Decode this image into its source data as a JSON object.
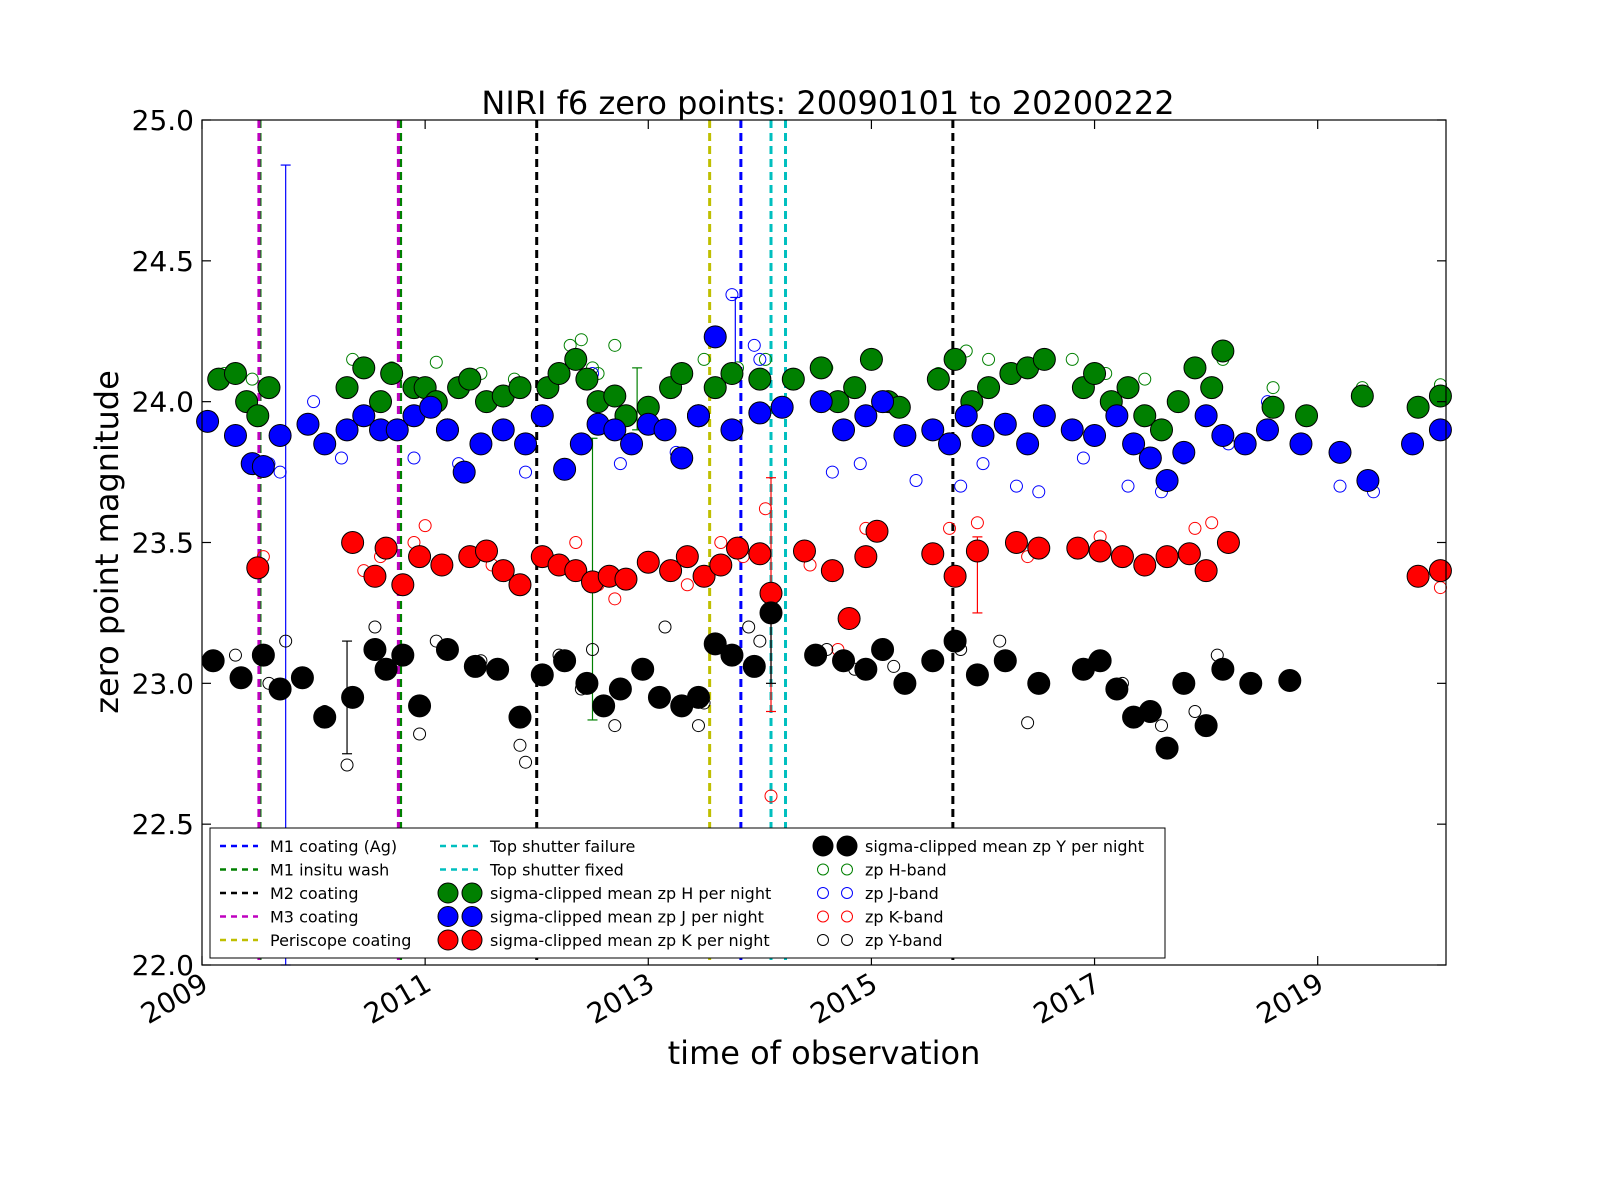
{
  "chart_data": {
    "type": "scatter",
    "title": "NIRI f6 zero points: 20090101 to 20200222",
    "xlabel": "time of observation",
    "ylabel": "zero point magnitude",
    "x_type": "date (decimal year)",
    "xlim": [
      2009.0,
      2020.15
    ],
    "ylim": [
      22.0,
      25.0
    ],
    "grid": false,
    "legend_placement": "lower center",
    "xticks": [
      2009,
      2011,
      2013,
      2015,
      2017,
      2019
    ],
    "xtick_labels": [
      "2009",
      "2011",
      "2013",
      "2015",
      "2017",
      "2019"
    ],
    "yticks": [
      22.0,
      22.5,
      23.0,
      23.5,
      24.0,
      24.5,
      25.0
    ],
    "ytick_labels": [
      "22.0",
      "22.5",
      "23.0",
      "23.5",
      "24.0",
      "24.5",
      "25.0"
    ],
    "events": [
      {
        "name": "M1 coating (Ag)",
        "color": "#0000ff",
        "x": [
          2013.83
        ]
      },
      {
        "name": "M1 insitu wash",
        "color": "#008000",
        "x": [
          2009.52,
          2010.78
        ]
      },
      {
        "name": "M2 coating",
        "color": "#000000",
        "x": [
          2012.0,
          2015.73
        ]
      },
      {
        "name": "M3 coating",
        "color": "#bf00bf",
        "x": [
          2009.51,
          2010.76
        ]
      },
      {
        "name": "Periscope coating",
        "color": "#bfbf00",
        "x": [
          2013.55
        ]
      },
      {
        "name": "Top shutter failure",
        "color": "#00bfbf",
        "x": [
          2014.1
        ]
      },
      {
        "name": "Top shutter fixed",
        "color": "#00bfbf",
        "x": [
          2014.23
        ]
      }
    ],
    "series": [
      {
        "name": "sigma-clipped mean zp H per night",
        "color": "#008000",
        "marker": "filled-large",
        "x": [
          2009.15,
          2009.3,
          2009.4,
          2009.5,
          2009.6,
          2010.3,
          2010.45,
          2010.6,
          2010.7,
          2010.9,
          2011.0,
          2011.1,
          2011.2,
          2011.3,
          2011.4,
          2011.55,
          2011.7,
          2011.85,
          2012.1,
          2012.2,
          2012.35,
          2012.45,
          2012.55,
          2012.7,
          2012.8,
          2013.0,
          2013.2,
          2013.3,
          2013.45,
          2013.6,
          2013.75,
          2014.0,
          2014.3,
          2014.55,
          2014.7,
          2014.85,
          2015.0,
          2015.15,
          2015.25,
          2015.6,
          2015.75,
          2015.9,
          2016.05,
          2016.25,
          2016.4,
          2016.55,
          2016.9,
          2017.0,
          2017.15,
          2017.3,
          2017.45,
          2017.6,
          2017.75,
          2017.9,
          2018.05,
          2018.15,
          2018.6,
          2018.9,
          2019.4,
          2019.9,
          2020.1
        ],
        "y": [
          24.08,
          24.1,
          24.0,
          23.95,
          24.05,
          24.05,
          24.12,
          24.0,
          24.1,
          24.05,
          24.05,
          24.0,
          23.9,
          24.05,
          24.08,
          24.0,
          24.02,
          24.05,
          24.05,
          24.1,
          24.15,
          24.08,
          24.0,
          24.02,
          23.95,
          23.98,
          24.05,
          24.1,
          23.95,
          24.05,
          24.1,
          24.08,
          24.08,
          24.12,
          24.0,
          24.05,
          24.15,
          24.0,
          23.98,
          24.08,
          24.15,
          24.0,
          24.05,
          24.1,
          24.12,
          24.15,
          24.05,
          24.1,
          24.0,
          24.05,
          23.95,
          23.9,
          24.0,
          24.12,
          24.05,
          24.18,
          23.98,
          23.95,
          24.02,
          23.98,
          24.02
        ]
      },
      {
        "name": "sigma-clipped mean zp J per night",
        "color": "#0000ff",
        "marker": "filled-large",
        "x": [
          2009.05,
          2009.3,
          2009.45,
          2009.55,
          2009.7,
          2009.95,
          2010.1,
          2010.3,
          2010.45,
          2010.6,
          2010.75,
          2010.9,
          2011.05,
          2011.2,
          2011.35,
          2011.5,
          2011.7,
          2011.9,
          2012.05,
          2012.25,
          2012.4,
          2012.55,
          2012.7,
          2012.85,
          2013.0,
          2013.15,
          2013.3,
          2013.45,
          2013.6,
          2013.75,
          2014.0,
          2014.2,
          2014.55,
          2014.75,
          2014.95,
          2015.1,
          2015.3,
          2015.55,
          2015.7,
          2015.85,
          2016.0,
          2016.2,
          2016.4,
          2016.55,
          2016.8,
          2017.0,
          2017.2,
          2017.35,
          2017.5,
          2017.65,
          2017.8,
          2018.0,
          2018.15,
          2018.35,
          2018.55,
          2018.85,
          2019.2,
          2019.45,
          2019.85,
          2020.1
        ],
        "y": [
          23.93,
          23.88,
          23.78,
          23.77,
          23.88,
          23.92,
          23.85,
          23.9,
          23.95,
          23.9,
          23.9,
          23.95,
          23.98,
          23.9,
          23.75,
          23.85,
          23.9,
          23.85,
          23.95,
          23.76,
          23.85,
          23.92,
          23.9,
          23.85,
          23.92,
          23.9,
          23.8,
          23.95,
          24.23,
          23.9,
          23.96,
          23.98,
          24.0,
          23.9,
          23.95,
          24.0,
          23.88,
          23.9,
          23.85,
          23.95,
          23.88,
          23.92,
          23.85,
          23.95,
          23.9,
          23.88,
          23.95,
          23.85,
          23.8,
          23.72,
          23.82,
          23.95,
          23.88,
          23.85,
          23.9,
          23.85,
          23.82,
          23.72,
          23.85,
          23.9
        ]
      },
      {
        "name": "sigma-clipped mean zp K per night",
        "color": "#ff0000",
        "marker": "filled-large",
        "x": [
          2009.5,
          2010.35,
          2010.55,
          2010.65,
          2010.8,
          2010.95,
          2011.15,
          2011.4,
          2011.55,
          2011.7,
          2011.85,
          2012.05,
          2012.2,
          2012.35,
          2012.5,
          2012.65,
          2012.8,
          2013.0,
          2013.2,
          2013.35,
          2013.5,
          2013.65,
          2013.8,
          2014.0,
          2014.1,
          2014.4,
          2014.65,
          2014.8,
          2014.95,
          2015.05,
          2015.55,
          2015.75,
          2015.95,
          2016.3,
          2016.5,
          2016.85,
          2017.05,
          2017.25,
          2017.45,
          2017.65,
          2017.85,
          2018.0,
          2018.2,
          2019.9,
          2020.1
        ],
        "y": [
          23.41,
          23.5,
          23.38,
          23.48,
          23.35,
          23.45,
          23.42,
          23.45,
          23.47,
          23.4,
          23.35,
          23.45,
          23.42,
          23.4,
          23.36,
          23.38,
          23.37,
          23.43,
          23.4,
          23.45,
          23.38,
          23.42,
          23.48,
          23.46,
          23.32,
          23.47,
          23.4,
          23.23,
          23.45,
          23.54,
          23.46,
          23.38,
          23.47,
          23.5,
          23.48,
          23.48,
          23.47,
          23.45,
          23.42,
          23.45,
          23.46,
          23.4,
          23.5,
          23.38,
          23.4
        ]
      },
      {
        "name": "sigma-clipped mean zp Y per night",
        "color": "#000000",
        "marker": "filled-large",
        "x": [
          2009.1,
          2009.35,
          2009.55,
          2009.7,
          2009.9,
          2010.1,
          2010.35,
          2010.55,
          2010.65,
          2010.8,
          2010.95,
          2011.2,
          2011.45,
          2011.65,
          2011.85,
          2012.05,
          2012.25,
          2012.45,
          2012.6,
          2012.75,
          2012.95,
          2013.1,
          2013.3,
          2013.45,
          2013.6,
          2013.75,
          2013.95,
          2014.1,
          2014.5,
          2014.75,
          2014.95,
          2015.1,
          2015.3,
          2015.55,
          2015.75,
          2015.95,
          2016.2,
          2016.5,
          2016.9,
          2017.05,
          2017.2,
          2017.35,
          2017.5,
          2017.65,
          2017.8,
          2018.0,
          2018.15,
          2018.4,
          2018.75
        ],
        "y": [
          23.08,
          23.02,
          23.1,
          22.98,
          23.02,
          22.88,
          22.95,
          23.12,
          23.05,
          23.1,
          22.92,
          23.12,
          23.06,
          23.05,
          22.88,
          23.03,
          23.08,
          23.0,
          22.92,
          22.98,
          23.05,
          22.95,
          22.92,
          22.95,
          23.14,
          23.1,
          23.06,
          23.25,
          23.1,
          23.08,
          23.05,
          23.12,
          23.0,
          23.08,
          23.15,
          23.03,
          23.08,
          23.0,
          23.05,
          23.08,
          22.98,
          22.88,
          22.9,
          22.77,
          23.0,
          22.85,
          23.05,
          23.0,
          23.01
        ]
      },
      {
        "name": "zp H-band",
        "color": "#008000",
        "marker": "open-small",
        "x": [
          2009.2,
          2009.45,
          2010.35,
          2010.7,
          2011.1,
          2011.5,
          2011.8,
          2012.3,
          2012.4,
          2012.5,
          2012.55,
          2012.7,
          2013.3,
          2013.5,
          2013.8,
          2014.05,
          2014.6,
          2015.0,
          2015.6,
          2015.85,
          2016.05,
          2016.35,
          2016.8,
          2017.1,
          2017.45,
          2017.9,
          2018.15,
          2018.6,
          2019.4,
          2020.1
        ],
        "y": [
          24.1,
          24.08,
          24.15,
          24.12,
          24.14,
          24.1,
          24.08,
          24.2,
          24.22,
          24.12,
          24.1,
          24.2,
          24.1,
          24.15,
          24.12,
          24.15,
          24.12,
          24.15,
          24.1,
          24.18,
          24.15,
          24.12,
          24.15,
          24.1,
          24.08,
          24.12,
          24.15,
          24.05,
          24.05,
          24.06
        ]
      },
      {
        "name": "zp J-band",
        "color": "#0000ff",
        "marker": "open-small",
        "x": [
          2009.6,
          2009.7,
          2010.0,
          2010.25,
          2010.9,
          2011.3,
          2011.9,
          2012.5,
          2012.75,
          2013.25,
          2013.75,
          2013.95,
          2014.0,
          2014.65,
          2014.9,
          2015.4,
          2015.8,
          2016.0,
          2016.3,
          2016.5,
          2016.9,
          2017.3,
          2017.6,
          2017.8,
          2018.2,
          2018.55,
          2019.2,
          2019.5
        ],
        "y": [
          23.78,
          23.75,
          24.0,
          23.8,
          23.8,
          23.78,
          23.75,
          24.1,
          23.78,
          23.82,
          24.38,
          24.2,
          24.15,
          23.75,
          23.78,
          23.72,
          23.7,
          23.78,
          23.7,
          23.68,
          23.8,
          23.7,
          23.68,
          23.8,
          23.85,
          24.0,
          23.7,
          23.68
        ]
      },
      {
        "name": "zp K-band",
        "color": "#ff0000",
        "marker": "open-small",
        "x": [
          2009.55,
          2010.45,
          2010.6,
          2010.9,
          2011.0,
          2011.6,
          2012.35,
          2012.55,
          2012.7,
          2013.35,
          2013.65,
          2013.85,
          2014.05,
          2014.1,
          2014.45,
          2014.7,
          2014.95,
          2015.7,
          2015.95,
          2016.4,
          2017.05,
          2017.9,
          2018.05,
          2020.1
        ],
        "y": [
          23.45,
          23.4,
          23.45,
          23.5,
          23.56,
          23.42,
          23.5,
          23.35,
          23.3,
          23.35,
          23.5,
          23.45,
          23.62,
          22.6,
          23.42,
          23.12,
          23.55,
          23.55,
          23.57,
          23.45,
          23.52,
          23.55,
          23.57,
          23.34
        ]
      },
      {
        "name": "zp Y-band",
        "color": "#000000",
        "marker": "open-small",
        "x": [
          2009.3,
          2009.6,
          2009.75,
          2010.1,
          2010.3,
          2010.55,
          2010.95,
          2011.1,
          2011.5,
          2011.85,
          2011.9,
          2012.2,
          2012.4,
          2012.5,
          2012.7,
          2013.15,
          2013.45,
          2013.5,
          2013.9,
          2014.0,
          2014.6,
          2014.85,
          2015.2,
          2015.8,
          2016.15,
          2016.4,
          2017.0,
          2017.25,
          2017.6,
          2017.9,
          2018.1
        ],
        "y": [
          23.1,
          23.0,
          23.15,
          22.9,
          22.71,
          23.2,
          22.82,
          23.15,
          23.08,
          22.78,
          22.72,
          23.1,
          22.98,
          23.12,
          22.85,
          23.2,
          22.85,
          22.93,
          23.2,
          23.15,
          23.12,
          23.05,
          23.06,
          23.12,
          23.15,
          22.86,
          23.08,
          23.0,
          22.85,
          22.9,
          23.1
        ]
      }
    ],
    "error_bars": [
      {
        "series": "zp J-band",
        "color": "#0000ff",
        "x": 2009.75,
        "y": 23.5,
        "low": 22.0,
        "high": 24.84
      },
      {
        "series": "zp J-band",
        "color": "#0000ff",
        "x": 2013.78,
        "y": 24.23,
        "low": 24.1,
        "high": 24.37
      },
      {
        "series": "zp H-band",
        "color": "#008000",
        "x": 2012.5,
        "y": 23.37,
        "low": 22.87,
        "high": 23.87
      },
      {
        "series": "zp H-band",
        "color": "#008000",
        "x": 2012.9,
        "y": 24.0,
        "low": 23.9,
        "high": 24.12
      },
      {
        "series": "zp K-band",
        "color": "#ff0000",
        "x": 2014.1,
        "y": 23.32,
        "low": 22.9,
        "high": 23.73
      },
      {
        "series": "zp K-band",
        "color": "#ff0000",
        "x": 2015.95,
        "y": 23.38,
        "low": 23.25,
        "high": 23.52
      },
      {
        "series": "zp Y-band",
        "color": "#000000",
        "x": 2010.3,
        "y": 22.98,
        "low": 22.75,
        "high": 23.15
      },
      {
        "series": "zp Y-band",
        "color": "#000000",
        "x": 2014.1,
        "y": 23.2,
        "low": 23.0,
        "high": 23.3
      }
    ]
  },
  "legend": {
    "columns": [
      [
        {
          "label": "M1 coating (Ag)",
          "kind": "dash",
          "color": "#0000ff"
        },
        {
          "label": "M1 insitu wash",
          "kind": "dash",
          "color": "#008000"
        },
        {
          "label": "M2 coating",
          "kind": "dash",
          "color": "#000000"
        },
        {
          "label": "M3 coating",
          "kind": "dash",
          "color": "#bf00bf"
        },
        {
          "label": "Periscope coating",
          "kind": "dash",
          "color": "#bfbf00"
        }
      ],
      [
        {
          "label": "Top shutter failure",
          "kind": "dash",
          "color": "#00bfbf"
        },
        {
          "label": "Top shutter fixed",
          "kind": "dash",
          "color": "#00bfbf"
        },
        {
          "label": "sigma-clipped mean zp H per night",
          "kind": "filled",
          "color": "#008000"
        },
        {
          "label": "sigma-clipped mean zp J per night",
          "kind": "filled",
          "color": "#0000ff"
        },
        {
          "label": "sigma-clipped mean zp K per night",
          "kind": "filled",
          "color": "#ff0000"
        }
      ],
      [
        {
          "label": "sigma-clipped mean zp Y per night",
          "kind": "filled",
          "color": "#000000"
        },
        {
          "label": "zp H-band",
          "kind": "open",
          "color": "#008000"
        },
        {
          "label": "zp J-band",
          "kind": "open",
          "color": "#0000ff"
        },
        {
          "label": "zp K-band",
          "kind": "open",
          "color": "#ff0000"
        },
        {
          "label": "zp Y-band",
          "kind": "open",
          "color": "#000000"
        }
      ]
    ]
  }
}
